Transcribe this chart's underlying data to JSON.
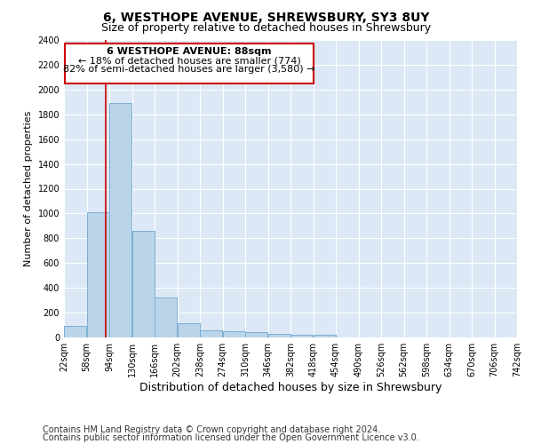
{
  "title": "6, WESTHOPE AVENUE, SHREWSBURY, SY3 8UY",
  "subtitle": "Size of property relative to detached houses in Shrewsbury",
  "xlabel": "Distribution of detached houses by size in Shrewsbury",
  "ylabel": "Number of detached properties",
  "footer1": "Contains HM Land Registry data © Crown copyright and database right 2024.",
  "footer2": "Contains public sector information licensed under the Open Government Licence v3.0.",
  "bar_edges": [
    22,
    58,
    94,
    130,
    166,
    202,
    238,
    274,
    310,
    346,
    382,
    418,
    454,
    490,
    526,
    562,
    598,
    634,
    670,
    706,
    742
  ],
  "bar_values": [
    95,
    1010,
    1890,
    860,
    320,
    115,
    60,
    50,
    45,
    30,
    20,
    25,
    0,
    0,
    0,
    0,
    0,
    0,
    0,
    0
  ],
  "property_size": 88,
  "annotation_line1": "6 WESTHOPE AVENUE: 88sqm",
  "annotation_line2": "← 18% of detached houses are smaller (774)",
  "annotation_line3": "82% of semi-detached houses are larger (3,580) →",
  "bar_color": "#bad4ea",
  "bar_edge_color": "#7cafd4",
  "vline_color": "#cc0000",
  "annotation_box_color": "#cc0000",
  "annotation_bg": "#ffffff",
  "ylim": [
    0,
    2400
  ],
  "yticks": [
    0,
    200,
    400,
    600,
    800,
    1000,
    1200,
    1400,
    1600,
    1800,
    2000,
    2200,
    2400
  ],
  "bg_color": "#dce8f5",
  "grid_color": "#ffffff",
  "fig_bg": "#ffffff",
  "title_fontsize": 10,
  "subtitle_fontsize": 9,
  "xlabel_fontsize": 9,
  "ylabel_fontsize": 8,
  "tick_fontsize": 7,
  "annotation_fontsize": 8,
  "footer_fontsize": 7
}
